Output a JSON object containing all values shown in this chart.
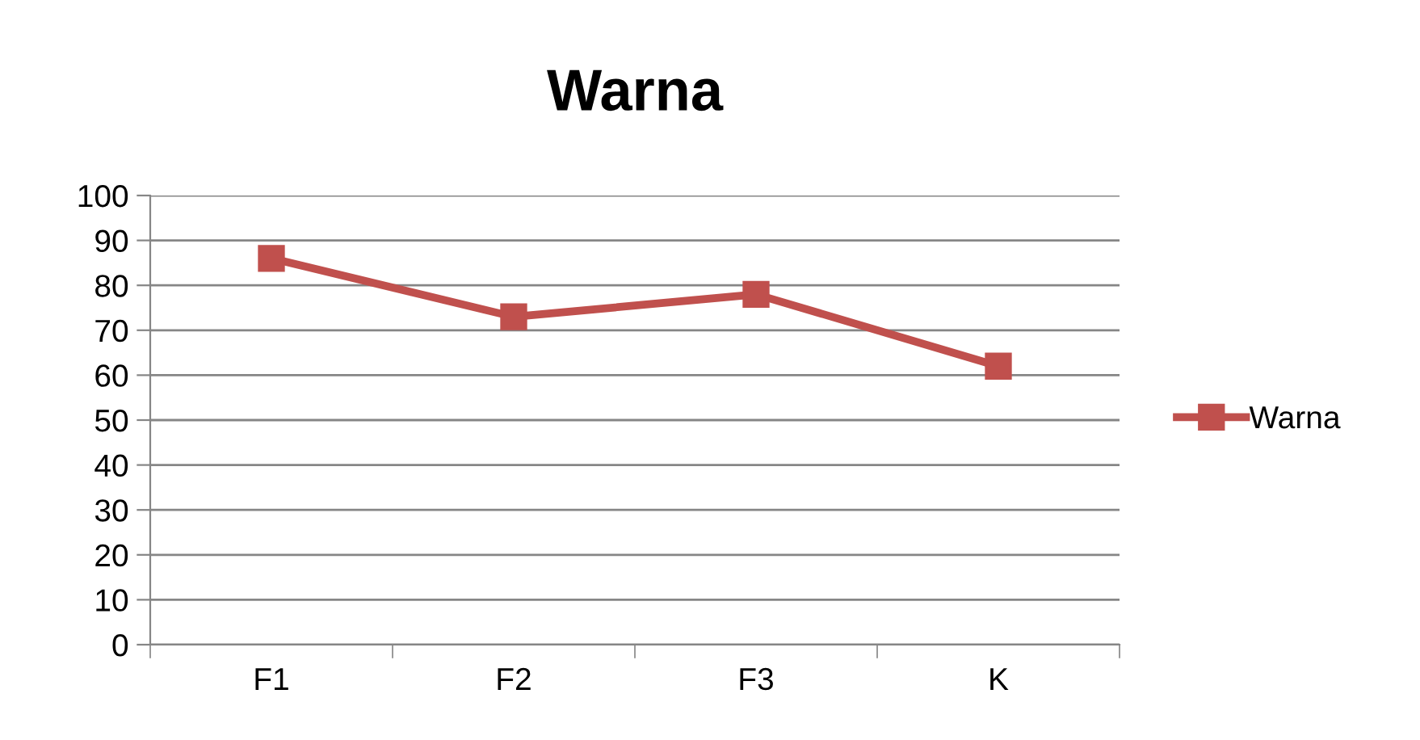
{
  "chart_data": {
    "type": "line",
    "title": "Warna",
    "categories": [
      "F1",
      "F2",
      "F3",
      "K"
    ],
    "series": [
      {
        "name": "Warna",
        "color": "#c0504d",
        "values": [
          86,
          73,
          78,
          62
        ]
      }
    ],
    "ylim": [
      0,
      100
    ],
    "yticks": [
      0,
      10,
      20,
      30,
      40,
      50,
      60,
      70,
      80,
      90,
      100
    ],
    "grid": "y",
    "legend": "right",
    "marker": "square",
    "line_style": "solid"
  }
}
